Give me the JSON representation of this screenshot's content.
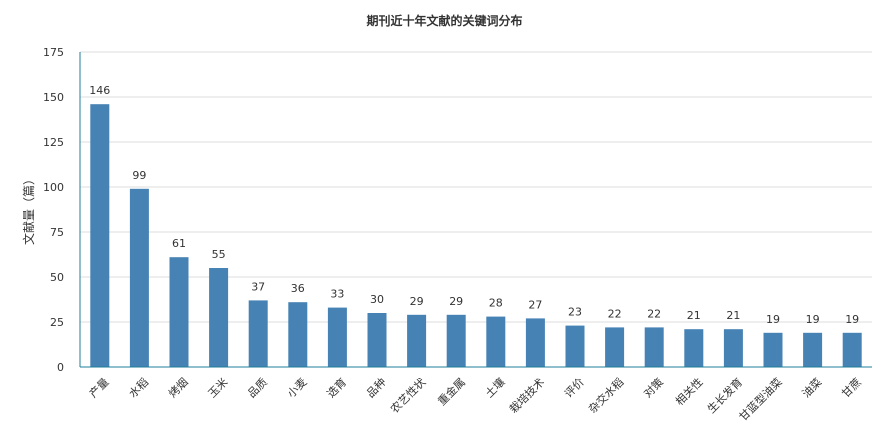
{
  "chart_data": {
    "type": "bar",
    "title": "期刊近十年文献的关键词分布",
    "xlabel": "",
    "ylabel": "文献量（篇）",
    "ylim": [
      0,
      175
    ],
    "yticks": [
      0,
      25,
      50,
      75,
      100,
      125,
      150,
      175
    ],
    "grid": true,
    "categories": [
      "产量",
      "水稻",
      "烤烟",
      "玉米",
      "品质",
      "小麦",
      "选育",
      "品种",
      "农艺性状",
      "重金属",
      "土壤",
      "栽培技术",
      "评价",
      "杂交水稻",
      "对策",
      "相关性",
      "生长发育",
      "甘蓝型油菜",
      "油菜",
      "甘蔗"
    ],
    "values": [
      146,
      99,
      61,
      55,
      37,
      36,
      33,
      30,
      29,
      29,
      28,
      27,
      23,
      22,
      22,
      21,
      21,
      19,
      19,
      19
    ],
    "colors": {
      "bar": "#4682b4",
      "grid": "#dcdcdc",
      "axis": "#1f7f99",
      "text": "#333333"
    }
  }
}
